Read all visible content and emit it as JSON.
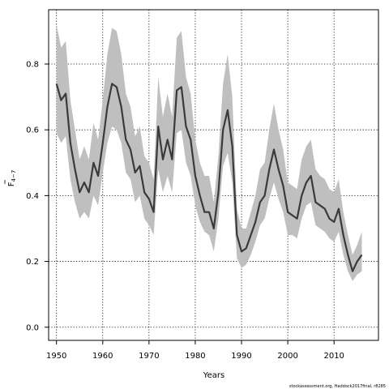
{
  "chart_data": {
    "type": "line",
    "title": "",
    "xlabel": "Years",
    "ylabel_main": "F",
    "ylabel_sub": "4−7",
    "xlim": [
      1948.3,
      2019.6
    ],
    "ylim": [
      -0.04,
      0.965
    ],
    "xticks": [
      1950,
      1960,
      1970,
      1980,
      1990,
      2000,
      2010
    ],
    "yticks": [
      0.0,
      0.2,
      0.4,
      0.6,
      0.8
    ],
    "ytick_labels": [
      "0.0",
      "0.2",
      "0.4",
      "0.6",
      "0.8"
    ],
    "grid": true,
    "band_color": "#bfbfbf",
    "line_color": "#3a3a3a",
    "series": [
      {
        "x": [
          1950,
          1951,
          1952,
          1953,
          1954,
          1955,
          1956,
          1957,
          1958,
          1959,
          1960,
          1961,
          1962,
          1963,
          1964,
          1965,
          1966,
          1967,
          1968,
          1969,
          1970,
          1971,
          1972,
          1973,
          1974,
          1975,
          1976,
          1977,
          1978,
          1979,
          1980,
          1981,
          1982,
          1983,
          1984,
          1985,
          1986,
          1987,
          1988,
          1989,
          1990,
          1991,
          1992,
          1993,
          1994,
          1995,
          1996,
          1997,
          1998,
          1999,
          2000,
          2001,
          2002,
          2003,
          2004,
          2005,
          2006,
          2007,
          2008,
          2009,
          2010,
          2011,
          2012,
          2013,
          2014,
          2015,
          2016
        ],
        "values": [
          0.74,
          0.69,
          0.71,
          0.56,
          0.48,
          0.41,
          0.44,
          0.41,
          0.5,
          0.46,
          0.56,
          0.67,
          0.74,
          0.73,
          0.67,
          0.57,
          0.54,
          0.47,
          0.49,
          0.41,
          0.39,
          0.35,
          0.61,
          0.51,
          0.57,
          0.51,
          0.72,
          0.73,
          0.61,
          0.57,
          0.46,
          0.4,
          0.35,
          0.35,
          0.3,
          0.41,
          0.6,
          0.66,
          0.55,
          0.28,
          0.23,
          0.24,
          0.28,
          0.32,
          0.38,
          0.4,
          0.48,
          0.54,
          0.48,
          0.43,
          0.35,
          0.34,
          0.33,
          0.4,
          0.44,
          0.46,
          0.38,
          0.37,
          0.36,
          0.33,
          0.32,
          0.36,
          0.28,
          0.22,
          0.17,
          0.2,
          0.22
        ],
        "lower": [
          0.59,
          0.56,
          0.58,
          0.45,
          0.38,
          0.33,
          0.35,
          0.33,
          0.4,
          0.37,
          0.47,
          0.56,
          0.61,
          0.6,
          0.56,
          0.47,
          0.45,
          0.38,
          0.4,
          0.33,
          0.31,
          0.28,
          0.48,
          0.41,
          0.46,
          0.41,
          0.59,
          0.6,
          0.5,
          0.46,
          0.37,
          0.32,
          0.29,
          0.28,
          0.23,
          0.33,
          0.49,
          0.53,
          0.44,
          0.21,
          0.18,
          0.19,
          0.22,
          0.26,
          0.31,
          0.33,
          0.39,
          0.44,
          0.39,
          0.35,
          0.28,
          0.28,
          0.27,
          0.33,
          0.37,
          0.38,
          0.31,
          0.3,
          0.29,
          0.27,
          0.26,
          0.29,
          0.22,
          0.17,
          0.14,
          0.16,
          0.17
        ],
        "upper": [
          0.92,
          0.85,
          0.87,
          0.69,
          0.6,
          0.51,
          0.55,
          0.51,
          0.62,
          0.57,
          0.69,
          0.83,
          0.91,
          0.9,
          0.83,
          0.71,
          0.67,
          0.58,
          0.61,
          0.52,
          0.5,
          0.45,
          0.76,
          0.64,
          0.71,
          0.64,
          0.88,
          0.9,
          0.76,
          0.71,
          0.57,
          0.5,
          0.46,
          0.46,
          0.38,
          0.52,
          0.74,
          0.83,
          0.7,
          0.36,
          0.3,
          0.3,
          0.35,
          0.4,
          0.48,
          0.5,
          0.6,
          0.68,
          0.6,
          0.54,
          0.44,
          0.43,
          0.42,
          0.51,
          0.55,
          0.57,
          0.48,
          0.46,
          0.45,
          0.42,
          0.41,
          0.45,
          0.35,
          0.28,
          0.22,
          0.25,
          0.29
        ]
      }
    ]
  },
  "source_note": "stockassessment.org, Haddock2017final, r8285"
}
